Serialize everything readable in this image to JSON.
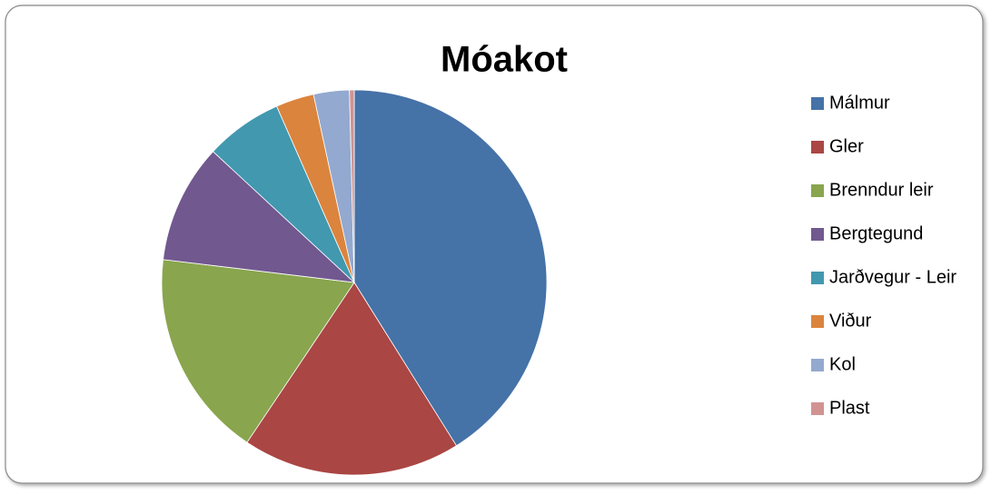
{
  "chart_data": {
    "type": "pie",
    "title": "Móakot",
    "categories": [
      "Málmur",
      "Gler",
      "Brenndur leir",
      "Bergtegund",
      "Jarðvegur - Leir",
      "Viður",
      "Kol",
      "Plast"
    ],
    "values": [
      41.1,
      18.3,
      17.5,
      10,
      6.5,
      3.2,
      3,
      0.4
    ],
    "colors": [
      "#4572a7",
      "#aa4643",
      "#89a54e",
      "#71588f",
      "#4198af",
      "#db843d",
      "#93a9cf",
      "#d19392"
    ],
    "legend": "right"
  }
}
